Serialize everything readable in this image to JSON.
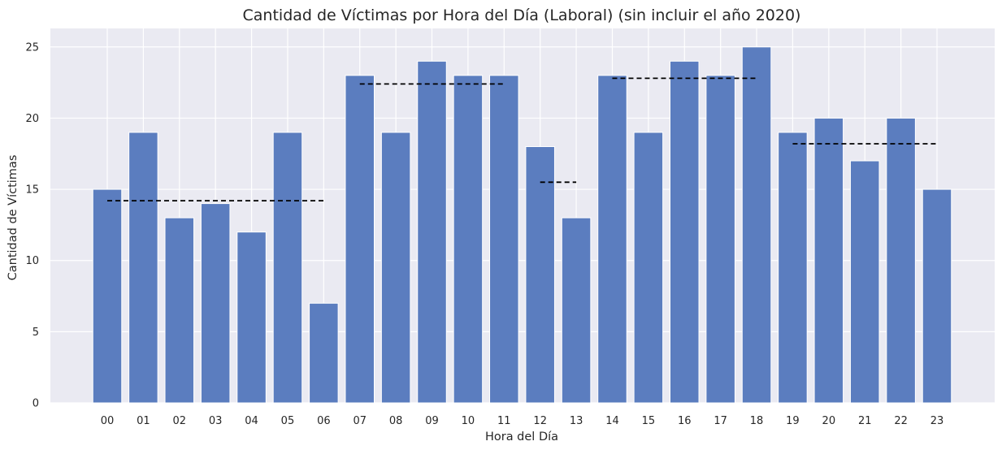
{
  "chart_data": {
    "type": "bar",
    "title": "Cantidad de Víctimas por Hora del Día (Laboral) (sin incluir el año 2020)",
    "xlabel": "Hora del Día",
    "ylabel": "Cantidad de Víctimas",
    "categories": [
      "00",
      "01",
      "02",
      "03",
      "04",
      "05",
      "06",
      "07",
      "08",
      "09",
      "10",
      "11",
      "12",
      "13",
      "14",
      "15",
      "16",
      "17",
      "18",
      "19",
      "20",
      "21",
      "22",
      "23"
    ],
    "values": [
      15,
      19,
      13,
      14,
      12,
      19,
      7,
      23,
      19,
      24,
      23,
      23,
      18,
      13,
      23,
      19,
      24,
      23,
      25,
      19,
      20,
      17,
      20,
      15
    ],
    "ylim": [
      0,
      26.3
    ],
    "yticks": [
      0,
      5,
      10,
      15,
      20,
      25
    ],
    "grid": true,
    "colors": {
      "bar": "#5b7dbf",
      "background": "#eaeaf2",
      "grid": "#ffffff",
      "reference_line": "#000000"
    },
    "reference_lines": [
      {
        "from": "00",
        "to": "06",
        "value": 14.2
      },
      {
        "from": "07",
        "to": "11",
        "value": 22.4
      },
      {
        "from": "12",
        "to": "13",
        "value": 15.5
      },
      {
        "from": "14",
        "to": "18",
        "value": 22.8
      },
      {
        "from": "19",
        "to": "23",
        "value": 18.2
      }
    ]
  }
}
